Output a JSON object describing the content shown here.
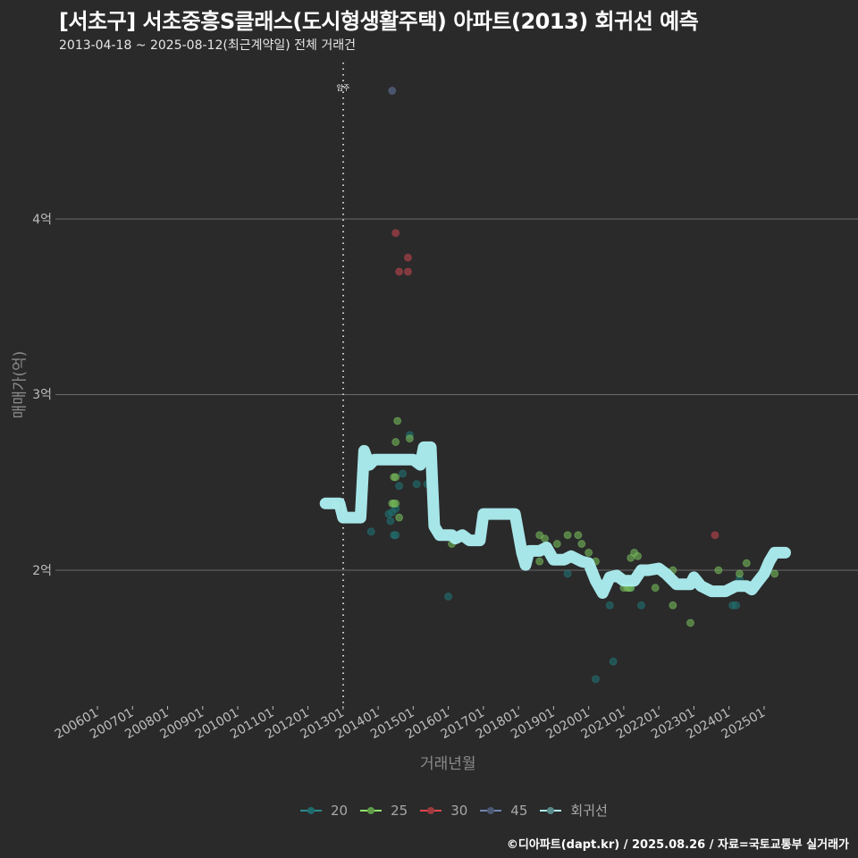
{
  "header": {
    "title": "[서초구] 서초중흥S클래스(도시형생활주택) 아파트(2013) 회귀선 예측",
    "subtitle": "2013-04-18 ~ 2025-08-12(최근계약일) 전체 거래건"
  },
  "axes": {
    "y_label": "매매가(억)",
    "x_label": "거래년월",
    "y_ticks": [
      {
        "label": "4억",
        "y": 245
      },
      {
        "label": "3억",
        "y": 441
      },
      {
        "label": "2억",
        "y": 638
      }
    ]
  },
  "annotation": {
    "label": "입주",
    "x": 384
  },
  "legend": [
    {
      "label": "20",
      "color": "#2a8c8c"
    },
    {
      "label": "25",
      "color": "#8fe36b"
    },
    {
      "label": "30",
      "color": "#e0474c"
    },
    {
      "label": "45",
      "color": "#6f86b0"
    },
    {
      "label": "회귀선",
      "color": "#aef0f2"
    }
  ],
  "caption": "©디아파트(dapt.kr) / 2025.08.26 / 자료=국토교통부 실거래가",
  "chart_data": {
    "type": "scatter",
    "title": "[서초구] 서초중흥S클래스(도시형생활주택) 아파트(2013) 회귀선 예측",
    "subtitle": "2013-04-18 ~ 2025-08-12(최근계약일) 전체 거래건",
    "xlabel": "거래년월",
    "ylabel": "매매가(억)",
    "x_ticks": [
      "200601",
      "200701",
      "200801",
      "200901",
      "201001",
      "201101",
      "201201",
      "201301",
      "201401",
      "201501",
      "201601",
      "201701",
      "201801",
      "201901",
      "202001",
      "202101",
      "202201",
      "202301",
      "202401",
      "202501"
    ],
    "y_ticks": [
      "2억",
      "3억",
      "4억"
    ],
    "ylim": [
      1.25,
      4.75
    ],
    "grid": "horizontal major only",
    "legend_position": "bottom",
    "vline": {
      "x": "2013-01",
      "label": "입주"
    },
    "series": [
      {
        "name": "20",
        "color": "#2a8c8c",
        "points": [
          [
            2013.8,
            2.22
          ],
          [
            2014.3,
            2.32
          ],
          [
            2014.35,
            2.28
          ],
          [
            2014.4,
            2.33
          ],
          [
            2014.45,
            2.2
          ],
          [
            2014.5,
            2.2
          ],
          [
            2014.5,
            2.35
          ],
          [
            2014.6,
            2.48
          ],
          [
            2014.7,
            2.55
          ],
          [
            2014.9,
            2.77
          ],
          [
            2015.1,
            2.49
          ],
          [
            2015.4,
            2.49
          ],
          [
            2016.0,
            1.85
          ],
          [
            2019.4,
            1.98
          ],
          [
            2020.2,
            1.38
          ],
          [
            2020.6,
            1.8
          ],
          [
            2020.7,
            1.48
          ],
          [
            2021.2,
            1.9
          ],
          [
            2021.5,
            1.8
          ],
          [
            2024.1,
            1.8
          ],
          [
            2024.2,
            1.8
          ],
          [
            2024.3,
            1.95
          ]
        ]
      },
      {
        "name": "25",
        "color": "#8fe36b",
        "points": [
          [
            2012.8,
            2.37
          ],
          [
            2014.4,
            2.38
          ],
          [
            2014.45,
            2.38
          ],
          [
            2014.5,
            2.38
          ],
          [
            2014.45,
            2.53
          ],
          [
            2014.5,
            2.53
          ],
          [
            2014.5,
            2.73
          ],
          [
            2014.55,
            2.85
          ],
          [
            2014.6,
            2.3
          ],
          [
            2014.9,
            2.75
          ],
          [
            2016.1,
            2.15
          ],
          [
            2018.6,
            2.2
          ],
          [
            2018.75,
            2.18
          ],
          [
            2018.6,
            2.05
          ],
          [
            2019.1,
            2.15
          ],
          [
            2019.4,
            2.2
          ],
          [
            2019.7,
            2.2
          ],
          [
            2019.8,
            2.15
          ],
          [
            2020.0,
            2.1
          ],
          [
            2020.2,
            2.05
          ],
          [
            2021.0,
            1.9
          ],
          [
            2021.2,
            2.07
          ],
          [
            2021.3,
            2.1
          ],
          [
            2021.4,
            2.08
          ],
          [
            2021.1,
            1.9
          ],
          [
            2021.15,
            1.9
          ],
          [
            2021.2,
            1.9
          ],
          [
            2021.9,
            1.9
          ],
          [
            2022.4,
            1.8
          ],
          [
            2022.4,
            2.0
          ],
          [
            2022.9,
            1.7
          ],
          [
            2023.7,
            2.0
          ],
          [
            2024.3,
            1.98
          ],
          [
            2024.5,
            2.04
          ],
          [
            2025.3,
            1.98
          ]
        ]
      },
      {
        "name": "30",
        "color": "#e0474c",
        "points": [
          [
            2014.5,
            3.92
          ],
          [
            2014.6,
            3.7
          ],
          [
            2014.85,
            3.78
          ],
          [
            2014.85,
            3.7
          ],
          [
            2023.6,
            2.2
          ]
        ]
      },
      {
        "name": "45",
        "color": "#6f86b0",
        "points": [
          [
            2014.4,
            4.73
          ]
        ]
      }
    ],
    "regression": {
      "name": "회귀선",
      "color": "#aef0f2",
      "points": [
        [
          2012.5,
          2.38
        ],
        [
          2012.9,
          2.38
        ],
        [
          2013.0,
          2.3
        ],
        [
          2013.5,
          2.3
        ],
        [
          2013.6,
          2.68
        ],
        [
          2013.75,
          2.6
        ],
        [
          2013.9,
          2.63
        ],
        [
          2014.3,
          2.63
        ],
        [
          2015.0,
          2.63
        ],
        [
          2015.2,
          2.6
        ],
        [
          2015.3,
          2.7
        ],
        [
          2015.5,
          2.7
        ],
        [
          2015.6,
          2.25
        ],
        [
          2015.75,
          2.2
        ],
        [
          2016.1,
          2.2
        ],
        [
          2016.2,
          2.18
        ],
        [
          2016.4,
          2.2
        ],
        [
          2016.6,
          2.17
        ],
        [
          2016.9,
          2.17
        ],
        [
          2017.0,
          2.32
        ],
        [
          2017.2,
          2.32
        ],
        [
          2017.9,
          2.32
        ],
        [
          2018.1,
          2.1
        ],
        [
          2018.2,
          2.03
        ],
        [
          2018.3,
          2.11
        ],
        [
          2018.6,
          2.11
        ],
        [
          2018.8,
          2.13
        ],
        [
          2019.0,
          2.06
        ],
        [
          2019.3,
          2.06
        ],
        [
          2019.5,
          2.08
        ],
        [
          2019.8,
          2.05
        ],
        [
          2020.0,
          2.04
        ],
        [
          2020.2,
          1.94
        ],
        [
          2020.4,
          1.87
        ],
        [
          2020.6,
          1.96
        ],
        [
          2020.8,
          1.97
        ],
        [
          2021.0,
          1.94
        ],
        [
          2021.3,
          1.94
        ],
        [
          2021.5,
          2.0
        ],
        [
          2021.7,
          2.0
        ],
        [
          2022.0,
          2.01
        ],
        [
          2022.2,
          1.98
        ],
        [
          2022.5,
          1.92
        ],
        [
          2022.9,
          1.92
        ],
        [
          2023.0,
          1.96
        ],
        [
          2023.2,
          1.91
        ],
        [
          2023.5,
          1.88
        ],
        [
          2023.9,
          1.88
        ],
        [
          2024.2,
          1.91
        ],
        [
          2024.5,
          1.91
        ],
        [
          2024.65,
          1.89
        ],
        [
          2024.8,
          1.93
        ],
        [
          2025.0,
          1.98
        ],
        [
          2025.15,
          2.05
        ],
        [
          2025.3,
          2.1
        ],
        [
          2025.6,
          2.1
        ]
      ]
    }
  }
}
